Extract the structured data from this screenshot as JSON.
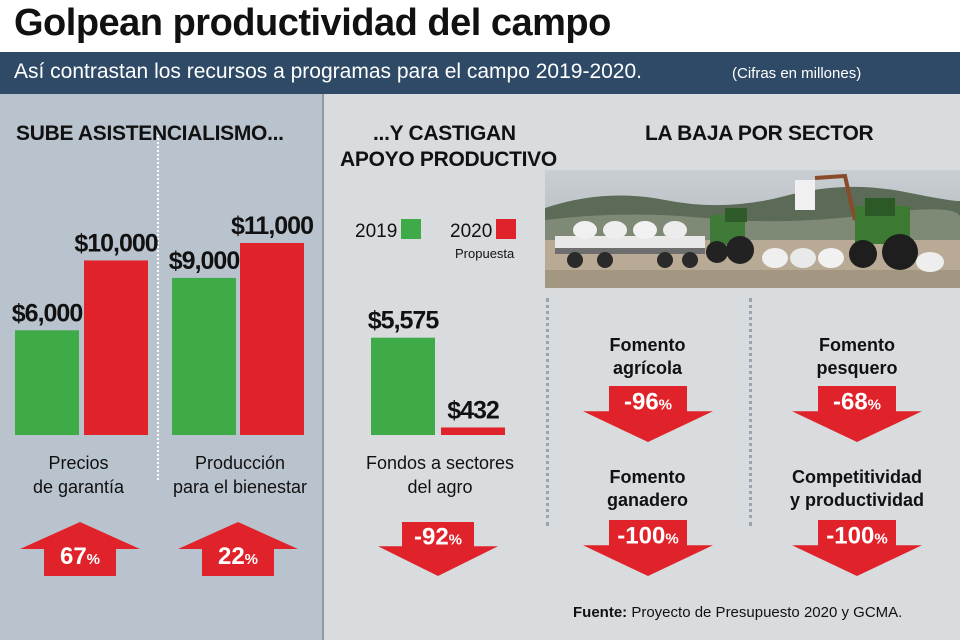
{
  "header": {
    "title": "Golpean productividad del campo",
    "subtitle": "Así contrastan los recursos a programas para el campo 2019-2020.",
    "note": "(Cifras en millones)"
  },
  "sections": {
    "left_heading": "SUBE ASISTENCIALISMO...",
    "middle_heading_line1": "...Y CASTIGAN",
    "middle_heading_line2": "APOYO PRODUCTIVO",
    "right_heading": "LA BAJA POR SECTOR"
  },
  "legend": {
    "y2019": "2019",
    "y2020": "2020",
    "y2020_sub": "Propuesta"
  },
  "colors": {
    "green": "#3faa48",
    "red": "#e0232a",
    "navy": "#2f4a66"
  },
  "chart_data": [
    {
      "type": "bar",
      "categories": [
        "Precios de garantía",
        "Producción para el bienestar"
      ],
      "category_lines": [
        [
          "Precios",
          "de garantía"
        ],
        [
          "Producción",
          "para el bienestar"
        ]
      ],
      "series": [
        {
          "name": "2019",
          "values": [
            6000,
            9000
          ],
          "labels": [
            "$6,000",
            "$9,000"
          ]
        },
        {
          "name": "2020",
          "values": [
            10000,
            11000
          ],
          "labels": [
            "$10,000",
            "$11,000"
          ]
        }
      ],
      "changes": [
        "67",
        "22"
      ],
      "change_direction": "up"
    },
    {
      "type": "bar",
      "categories": [
        "Fondos a sectores del agro"
      ],
      "category_lines": [
        [
          "Fondos a sectores",
          "del agro"
        ]
      ],
      "series": [
        {
          "name": "2019",
          "values": [
            5575
          ],
          "labels": [
            "$5,575"
          ]
        },
        {
          "name": "2020",
          "values": [
            432
          ],
          "labels": [
            "$432"
          ]
        }
      ],
      "changes": [
        "-92"
      ],
      "change_direction": "down"
    }
  ],
  "sectors": [
    {
      "line1": "Fomento",
      "line2": "agrícola",
      "change": "-96"
    },
    {
      "line1": "Fomento",
      "line2": "pesquero",
      "change": "-68"
    },
    {
      "line1": "Fomento",
      "line2": "ganadero",
      "change": "-100"
    },
    {
      "line1": "Competitividad",
      "line2": "y productividad",
      "change": "-100"
    }
  ],
  "pct_sign": "%",
  "source": {
    "label": "Fuente:",
    "text": "Proyecto de Presupuesto 2020 y GCMA."
  }
}
